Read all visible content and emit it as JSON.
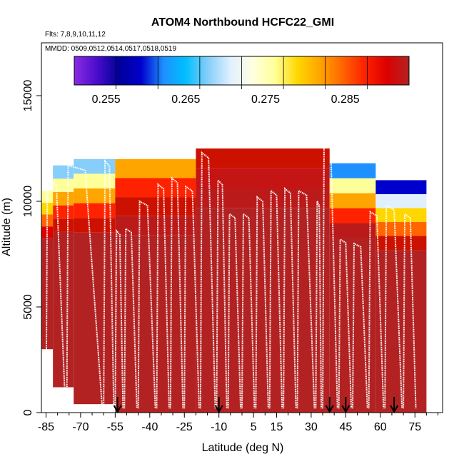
{
  "chart_data": {
    "type": "heatmap",
    "title": "ATOM4 Northbound HCFC22_GMI",
    "flights_note": "Flts: 7,8,9,10,11,12",
    "dates_note": "MMDD: 0509,0512,0514,0517,0518,0519",
    "xlabel": "Latitude (deg N)",
    "ylabel": "Altitude (m)",
    "xlim": [
      -87,
      87
    ],
    "ylim": [
      0,
      17500
    ],
    "x_ticks": [
      -85,
      -70,
      -55,
      -40,
      -25,
      -10,
      5,
      15,
      30,
      45,
      60,
      75
    ],
    "x_tick_labels": [
      "-85",
      "-70",
      "-55",
      "-40",
      "-25",
      "-10",
      "5",
      "15",
      "30",
      "45",
      "60",
      "75"
    ],
    "y_ticks": [
      0,
      5000,
      10000,
      15000
    ],
    "y_tick_labels": [
      "0",
      "5000",
      "10000",
      "15000"
    ],
    "colorbar": {
      "min": 0.251,
      "max": 0.293,
      "ticks": [
        0.255,
        0.265,
        0.275,
        0.285
      ],
      "tick_labels": [
        "0.255",
        "0.265",
        "0.275",
        "0.285"
      ],
      "colors": [
        "#8a2be2",
        "#4b0dcc",
        "#00009a",
        "#0000cd",
        "#1e90ff",
        "#00bfff",
        "#87cefa",
        "#e0f0ff",
        "#ffffe0",
        "#ffff99",
        "#ffd700",
        "#ffa500",
        "#ff6600",
        "#ff2200",
        "#dd0000",
        "#b22222"
      ]
    },
    "vertical_profiles": [
      {
        "lat": -85,
        "top": 11000
      },
      {
        "lat": -76,
        "top": 11700
      },
      {
        "lat": -60,
        "top": 11900
      },
      {
        "lat": -55,
        "top": 8600
      },
      {
        "lat": -51,
        "top": 8700
      },
      {
        "lat": -45,
        "top": 10000
      },
      {
        "lat": -37,
        "top": 10800
      },
      {
        "lat": -31,
        "top": 11100
      },
      {
        "lat": -25,
        "top": 10700
      },
      {
        "lat": -18,
        "top": 12300
      },
      {
        "lat": -11,
        "top": 11000
      },
      {
        "lat": -6,
        "top": 9400
      },
      {
        "lat": 0,
        "top": 9400
      },
      {
        "lat": 6,
        "top": 10200
      },
      {
        "lat": 12,
        "top": 10500
      },
      {
        "lat": 18,
        "top": 10600
      },
      {
        "lat": 24,
        "top": 10500
      },
      {
        "lat": 32,
        "top": 10000
      },
      {
        "lat": 35,
        "top": 12800
      },
      {
        "lat": 42,
        "top": 8200
      },
      {
        "lat": 48,
        "top": 8000
      },
      {
        "lat": 55,
        "top": 9500
      },
      {
        "lat": 62,
        "top": 9800
      },
      {
        "lat": 70,
        "top": 9400
      },
      {
        "lat": 76,
        "top": 9500
      }
    ],
    "landing_markers": [
      -54,
      -10,
      38,
      45,
      66
    ],
    "color_field": [
      {
        "lat_min": -87,
        "lat_max": -82,
        "alt_min": 3000,
        "alt_max": 10500,
        "band": "low_west"
      },
      {
        "lat_min": -82,
        "lat_max": -73,
        "alt_min": 1200,
        "alt_max": 11700,
        "band": "full"
      },
      {
        "lat_min": -73,
        "lat_max": -55,
        "alt_min": 400,
        "alt_max": 12000,
        "band": "full"
      },
      {
        "lat_min": -55,
        "lat_max": -20,
        "alt_min": 0,
        "alt_max": 12000,
        "band": "mid"
      },
      {
        "lat_min": -20,
        "lat_max": 38,
        "alt_min": 0,
        "alt_max": 12500,
        "band": "core"
      },
      {
        "lat_min": 38,
        "lat_max": 58,
        "alt_min": 0,
        "alt_max": 11800,
        "band": "north"
      },
      {
        "lat_min": 58,
        "lat_max": 80,
        "alt_min": 0,
        "alt_max": 11000,
        "band": "polar"
      }
    ]
  }
}
